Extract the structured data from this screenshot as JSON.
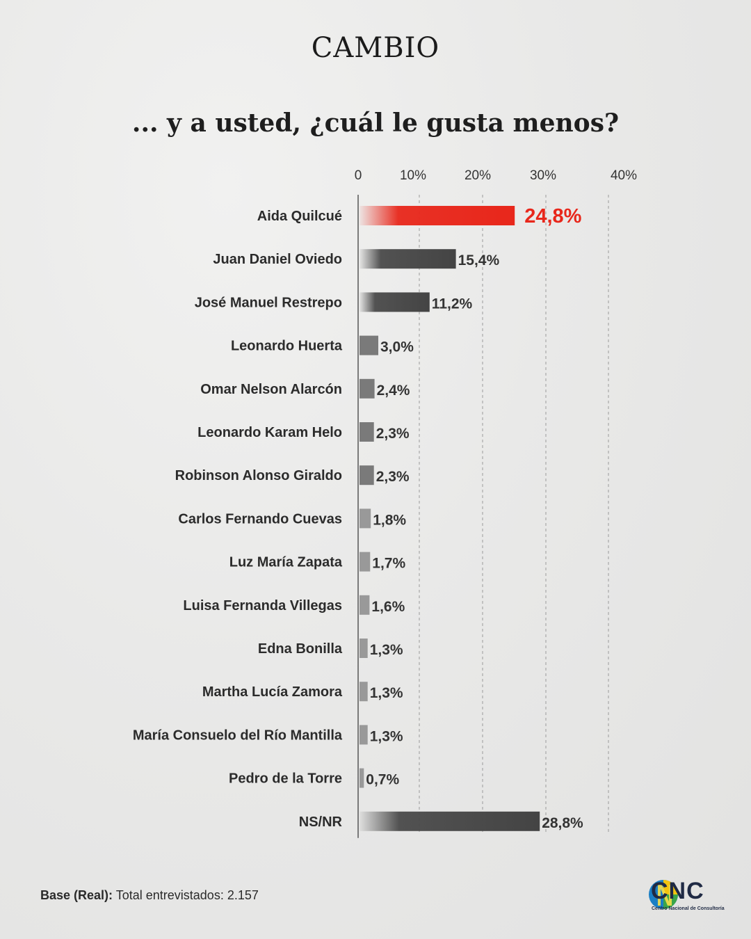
{
  "brand": "CAMBIO",
  "chart_data": {
    "type": "bar",
    "orientation": "horizontal",
    "title": "... y a usted, ¿cuál le gusta menos?",
    "xlabel": "",
    "ylabel": "",
    "xlim": [
      0,
      40
    ],
    "x_ticks": [
      "0",
      "10%",
      "20%",
      "30%",
      "40%"
    ],
    "grid": "vertical-dashed",
    "highlight_color": "#e8271b",
    "bar_color": "#4a4a4a",
    "categories": [
      "Aida Quilcué",
      "Juan Daniel Oviedo",
      "José Manuel Restrepo",
      "Leonardo Huerta",
      "Omar Nelson Alarcón",
      "Leonardo Karam Helo",
      "Robinson Alonso Giraldo",
      "Carlos Fernando Cuevas",
      "Luz María Zapata",
      "Luisa Fernanda Villegas",
      "Edna Bonilla",
      "Martha Lucía Zamora",
      "María Consuelo del Río Mantilla",
      "Pedro de la Torre",
      "NS/NR"
    ],
    "values": [
      24.8,
      15.4,
      11.2,
      3.0,
      2.4,
      2.3,
      2.3,
      1.8,
      1.7,
      1.6,
      1.3,
      1.3,
      1.3,
      0.7,
      28.8
    ],
    "value_labels": [
      "24,8%",
      "15,4%",
      "11,2%",
      "3,0%",
      "2,4%",
      "2,3%",
      "2,3%",
      "1,8%",
      "1,7%",
      "1,6%",
      "1,3%",
      "1,3%",
      "1,3%",
      "0,7%",
      "28,8%"
    ],
    "highlight_index": 0
  },
  "footer": {
    "base_label": "Base (Real):",
    "base_text": "Total entrevistados: 2.157"
  },
  "logo": {
    "text": "CNC",
    "subtitle": "Centro Nacional de Consultoría"
  }
}
